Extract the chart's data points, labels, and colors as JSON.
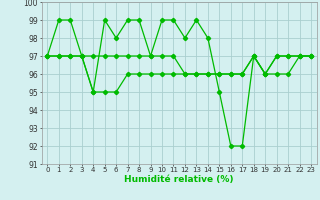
{
  "x": [
    0,
    1,
    2,
    3,
    4,
    5,
    6,
    7,
    8,
    9,
    10,
    11,
    12,
    13,
    14,
    15,
    16,
    17,
    18,
    19,
    20,
    21,
    22,
    23
  ],
  "line1": [
    97,
    99,
    99,
    97,
    95,
    99,
    98,
    99,
    99,
    97,
    99,
    99,
    98,
    99,
    98,
    95,
    92,
    92,
    97,
    96,
    97,
    97,
    97,
    97
  ],
  "line2": [
    97,
    97,
    97,
    97,
    97,
    97,
    97,
    97,
    97,
    97,
    97,
    97,
    96,
    96,
    96,
    96,
    96,
    96,
    97,
    96,
    97,
    97,
    97,
    97
  ],
  "line3": [
    97,
    97,
    97,
    97,
    95,
    95,
    95,
    96,
    96,
    96,
    96,
    96,
    96,
    96,
    96,
    96,
    96,
    96,
    97,
    96,
    96,
    96,
    97,
    97
  ],
  "line_color": "#00bb00",
  "bg_color": "#d4f0f0",
  "grid_color": "#aacfcf",
  "xlabel": "Humidité relative (%)",
  "ylim": [
    91,
    100
  ],
  "xlim": [
    -0.5,
    23.5
  ],
  "yticks": [
    91,
    92,
    93,
    94,
    95,
    96,
    97,
    98,
    99,
    100
  ],
  "xticks": [
    0,
    1,
    2,
    3,
    4,
    5,
    6,
    7,
    8,
    9,
    10,
    11,
    12,
    13,
    14,
    15,
    16,
    17,
    18,
    19,
    20,
    21,
    22,
    23
  ],
  "xlabel_fontsize": 6.5,
  "tick_fontsize": 5.0,
  "ytick_fontsize": 5.5
}
